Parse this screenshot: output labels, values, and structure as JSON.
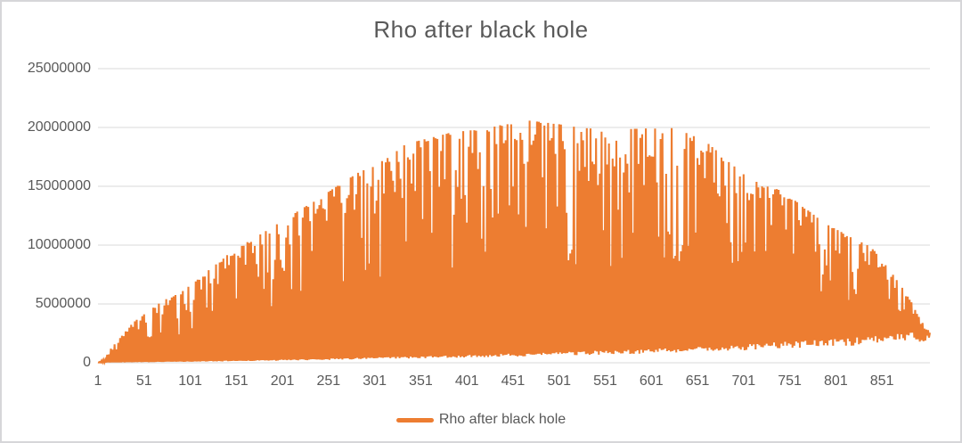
{
  "window": {
    "background": "#ffffff",
    "border_color": "#d6d6d9"
  },
  "chart": {
    "title": "Rho after black hole",
    "title_color": "#595959",
    "axis_label_color": "#595959",
    "gridline_color": "#d9d9d9",
    "series_color": "#ed7d31",
    "legend": {
      "label": "Rho after black hole",
      "marker": "line-marker",
      "position": "bottom"
    }
  },
  "chart_data": {
    "type": "line",
    "title": "Rho after black hole",
    "series_name": "Rho after black hole",
    "xlabel": "",
    "ylabel": "",
    "grid": "horizontal",
    "legend_position": "bottom",
    "n_points": 903,
    "x_range": [
      1,
      903
    ],
    "ylim": [
      0,
      25000000
    ],
    "y_ticks": [
      0,
      5000000,
      10000000,
      15000000,
      20000000,
      25000000
    ],
    "y_tick_labels": [
      "0",
      "5000000",
      "10000000",
      "15000000",
      "20000000",
      "25000000"
    ],
    "x_tick_values": [
      1,
      51,
      101,
      151,
      201,
      251,
      301,
      351,
      401,
      451,
      501,
      551,
      601,
      651,
      701,
      751,
      801,
      851
    ],
    "x_tick_labels": [
      "1",
      "51",
      "101",
      "151",
      "201",
      "251",
      "301",
      "351",
      "401",
      "451",
      "501",
      "551",
      "601",
      "651",
      "701",
      "751",
      "801",
      "851"
    ],
    "series_description": "Rapidly oscillating positive series: odd samples follow a noisy dome-shaped upper envelope, even samples follow a slowly rising lower envelope, producing a solid spiky orange mass.",
    "upper_envelope": {
      "x": [
        1,
        8,
        15,
        40,
        70,
        100,
        146,
        200,
        250,
        300,
        330,
        380,
        467,
        550,
        630,
        660,
        705,
        745,
        790,
        840,
        862,
        880,
        893,
        903
      ],
      "y": [
        50000,
        300000,
        1200000,
        3500000,
        5200000,
        6500000,
        9500000,
        12000000,
        14500000,
        17000000,
        18500000,
        19500000,
        20600000,
        19800000,
        20000000,
        18800000,
        15800000,
        14500000,
        11800000,
        9800000,
        7600000,
        5600000,
        3600000,
        2600000
      ]
    },
    "lower_envelope": {
      "x": [
        1,
        100,
        200,
        300,
        400,
        500,
        600,
        700,
        800,
        860,
        903
      ],
      "y": [
        20000,
        100000,
        220000,
        380000,
        550000,
        750000,
        1000000,
        1300000,
        1700000,
        2000000,
        2300000
      ]
    },
    "peak_value": 20600000,
    "peak_index": 467,
    "noise": {
      "seed": 42,
      "notch_depth": 0.62,
      "notch_power": 3,
      "low_base": 0.8,
      "low_jitter": 0.4
    }
  }
}
